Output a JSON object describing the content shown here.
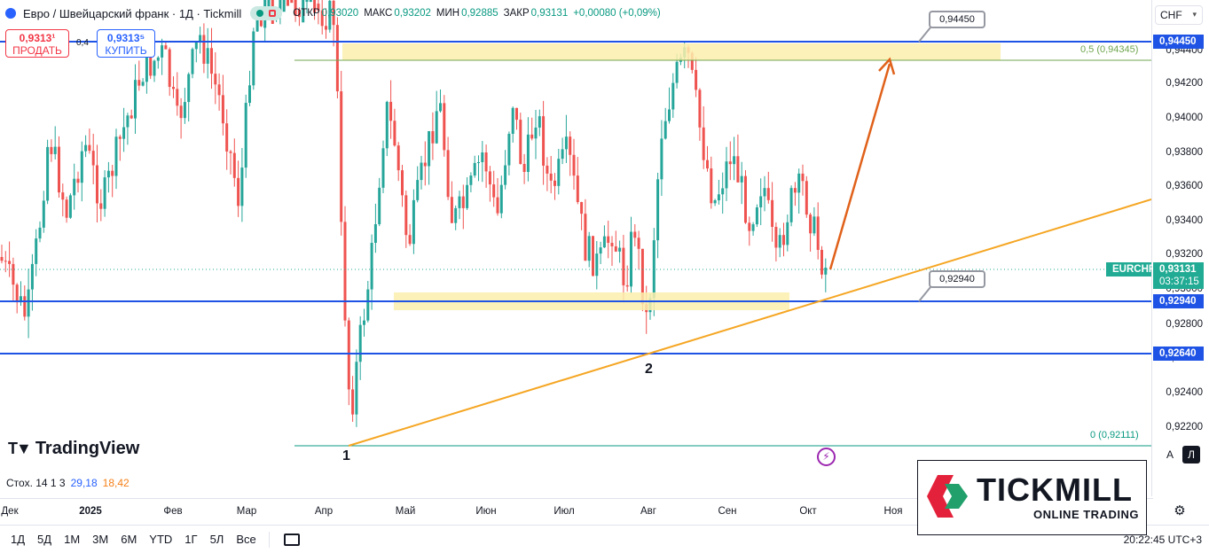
{
  "header": {
    "symbol_title": "Евро / Швейцарский франк · 1Д · Tickmill",
    "ohlc": [
      {
        "label": "ОТКР",
        "value": "0,93020"
      },
      {
        "label": "МАКС",
        "value": "0,93202"
      },
      {
        "label": "МИН",
        "value": "0,92885"
      },
      {
        "label": "ЗАКР",
        "value": "0,93131"
      }
    ],
    "change": "+0,00080 (+0,09%)"
  },
  "trade": {
    "sell_price": "0,9313¹",
    "sell_label": "ПРОДАТЬ",
    "spread": "0,4",
    "buy_price": "0,9313⁵",
    "buy_label": "КУПИТЬ"
  },
  "currency_select": "CHF",
  "price_scale": {
    "labels": [
      "0,94400",
      "0,94200",
      "0,94000",
      "0,93800",
      "0,93600",
      "0,93400",
      "0,93200",
      "0,93000",
      "0,92800",
      "0,92600",
      "0,92400",
      "0,92200"
    ],
    "tag_resistance": "0,94450",
    "tag_support": "0,92940",
    "tag_low": "0,92640",
    "symbol_tag": "EURCHF",
    "current_price": "0,93131",
    "countdown": "03:37:15"
  },
  "callouts": {
    "upper": "0,94450",
    "lower": "0,92940"
  },
  "fib": {
    "top": "0,5 (0,94345)",
    "bottom": "0 (0,92111)"
  },
  "pivot_labels": {
    "p1": "1",
    "p2": "2"
  },
  "watermark": "TradingView",
  "indicator": {
    "name": "Стох. 14 1 3",
    "k": "29,18",
    "d": "18,42"
  },
  "time_axis": [
    "Дек",
    "2025",
    "Фев",
    "Мар",
    "Апр",
    "Май",
    "Июн",
    "Июл",
    "Авг",
    "Сен",
    "Окт",
    "Ноя"
  ],
  "range_buttons": [
    "1Д",
    "5Д",
    "1М",
    "3М",
    "6М",
    "YTD",
    "1Г",
    "5Л",
    "Все"
  ],
  "clock": "20:22:45 UTC+3",
  "scale_buttons": {
    "auto": "A",
    "log": "Л"
  },
  "brand": {
    "name": "TICKMILL",
    "tagline": "ONLINE TRADING"
  },
  "colors": {
    "up": "#26a69a",
    "down": "#ef5350",
    "level_line": "#1e53e5",
    "zone": "#fbeeac",
    "trendline": "#f5a623",
    "arrow": "#e0611a",
    "brand_red": "#e4213a",
    "brand_green": "#21a06b"
  }
}
